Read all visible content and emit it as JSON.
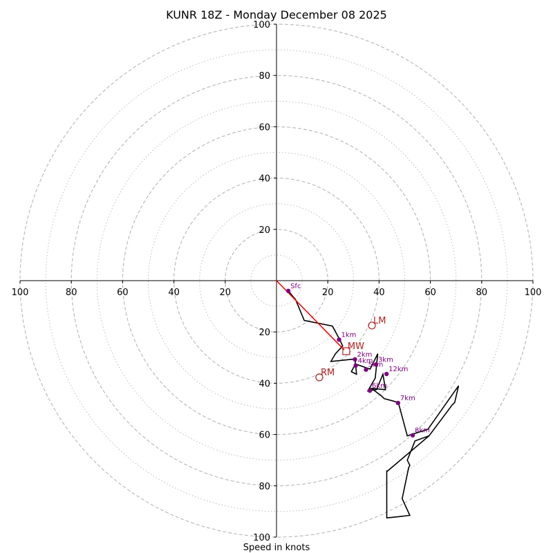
{
  "chart_data": {
    "type": "line",
    "title": "KUNR 18Z - Monday December 08 2025",
    "xlabel": "Speed in knots",
    "ylabel": "",
    "xlim": [
      -100,
      100
    ],
    "ylim": [
      -100,
      100
    ],
    "grid": true,
    "ring_major": [
      20,
      40,
      60,
      80,
      100
    ],
    "ring_minor": [
      10,
      30,
      50,
      70,
      90
    ],
    "x_ticks": [
      "100",
      "80",
      "60",
      "40",
      "20",
      "20",
      "40",
      "60",
      "80",
      "100"
    ],
    "x_tick_values": [
      -100,
      -80,
      -60,
      -40,
      -20,
      20,
      40,
      60,
      80,
      100
    ],
    "y_ticks_top": [
      "20",
      "40",
      "60",
      "80",
      "100"
    ],
    "y_tick_values_top": [
      20,
      40,
      60,
      80,
      100
    ],
    "y_ticks_bottom": [
      "20",
      "40",
      "60",
      "80",
      "100"
    ],
    "y_tick_values_bottom": [
      -20,
      -40,
      -60,
      -80,
      -100
    ],
    "hodograph": {
      "u": [
        4.6,
        7.5,
        10.8,
        21.8,
        24.8,
        25.8,
        23.0,
        21.2,
        31.0,
        30.5,
        29.2,
        31.2,
        30.8,
        36.5,
        39.5,
        38.5,
        35.6,
        39.0,
        41.5,
        42.5,
        37.0,
        41.0,
        42.0,
        47.5,
        51.0,
        59.0,
        71.0,
        69.5,
        68.5,
        59.5,
        54.0,
        51.0,
        52.0,
        51.5,
        49.0,
        52.0,
        48.0,
        43.0,
        43.0,
        43.0,
        59.5
      ],
      "v": [
        -4.0,
        -7.5,
        -15.5,
        -17.7,
        -23.3,
        -25.5,
        -28.5,
        -31.5,
        -30.5,
        -33.0,
        -35.5,
        -36.5,
        -32.5,
        -34.5,
        -28.5,
        -38.0,
        -43.0,
        -42.5,
        -36.5,
        -42.5,
        -42.0,
        -45.0,
        -46.0,
        -47.5,
        -60.5,
        -58.0,
        -41.0,
        -47.5,
        -48.5,
        -60.5,
        -62.5,
        -70.0,
        -72.0,
        -73.0,
        -85.0,
        -91.5,
        -92.0,
        -92.5,
        -74.0,
        -74.5,
        -60.5
      ]
    },
    "height_markers": [
      {
        "label": "Sfc",
        "u": 4.6,
        "v": -4.0
      },
      {
        "label": "1km",
        "u": 24.4,
        "v": -23.0
      },
      {
        "label": "2km",
        "u": 30.6,
        "v": -30.7
      },
      {
        "label": "3km",
        "u": 38.8,
        "v": -32.7
      },
      {
        "label": "4km",
        "u": 30.9,
        "v": -33.1
      },
      {
        "label": "5km",
        "u": 34.9,
        "v": -34.7
      },
      {
        "label": "6km",
        "u": 36.4,
        "v": -42.9
      },
      {
        "label": "7km",
        "u": 47.4,
        "v": -47.7
      },
      {
        "label": "8km",
        "u": 53.1,
        "v": -60.3
      },
      {
        "label": "12km",
        "u": 42.9,
        "v": -36.4
      }
    ],
    "mean_wind_vector": {
      "u_start": 0,
      "v_start": 0,
      "u_end": 26.4,
      "v_end": -27.0
    },
    "storm_motions": [
      {
        "label": "LM",
        "u": 37.2,
        "v": -17.5,
        "marker": "circle"
      },
      {
        "label": "MW",
        "u": 27.2,
        "v": -27.5,
        "marker": "square"
      },
      {
        "label": "RM",
        "u": 16.7,
        "v": -37.7,
        "marker": "circle"
      }
    ],
    "colors": {
      "trace": "#000000",
      "markers": "#800080",
      "mean_wind": "#ff0000",
      "storm_motion": "#b22222",
      "grid": "#bbbbbb"
    }
  }
}
